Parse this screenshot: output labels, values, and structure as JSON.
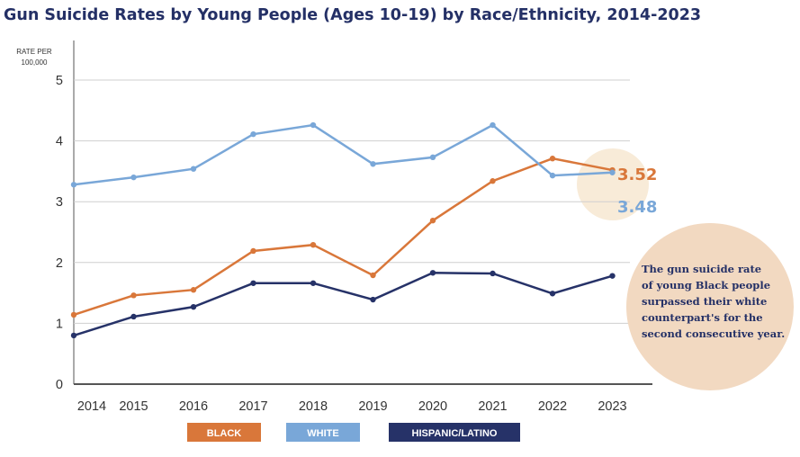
{
  "chart_data": {
    "type": "line",
    "title": "Gun Suicide Rates by Young People (Ages 10-19) by Race/Ethnicity, 2014-2023",
    "ylabel": [
      "RATE PER",
      "100,000"
    ],
    "xlabel": "",
    "ylim": [
      0,
      5
    ],
    "yticks": [
      0,
      1,
      2,
      3,
      4,
      5
    ],
    "grid": true,
    "legend_position": "bottom",
    "categories": [
      "2014",
      "2015",
      "2016",
      "2017",
      "2018",
      "2019",
      "2020",
      "2021",
      "2022",
      "2023"
    ],
    "series": [
      {
        "name": "BLACK",
        "color": "#d9773a",
        "values": [
          1.14,
          1.46,
          1.55,
          2.19,
          2.29,
          1.79,
          2.69,
          3.34,
          3.71,
          3.52
        ]
      },
      {
        "name": "WHITE",
        "color": "#79a7d8",
        "values": [
          3.28,
          3.4,
          3.54,
          4.11,
          4.26,
          3.62,
          3.73,
          4.26,
          3.43,
          3.48
        ]
      },
      {
        "name": "HISPANIC/LATINO",
        "color": "#263268",
        "values": [
          0.8,
          1.11,
          1.27,
          1.66,
          1.66,
          1.39,
          1.83,
          1.82,
          1.49,
          1.78
        ]
      }
    ],
    "end_labels": {
      "black": "3.52",
      "white": "3.48"
    },
    "annotation": [
      "The gun suicide rate",
      "of young Black people",
      "surpassed their white",
      "counterpart's for the",
      "second consecutive year."
    ],
    "highlight_color": "#f8ebd8",
    "annotation_color": "#f2d9c1"
  }
}
